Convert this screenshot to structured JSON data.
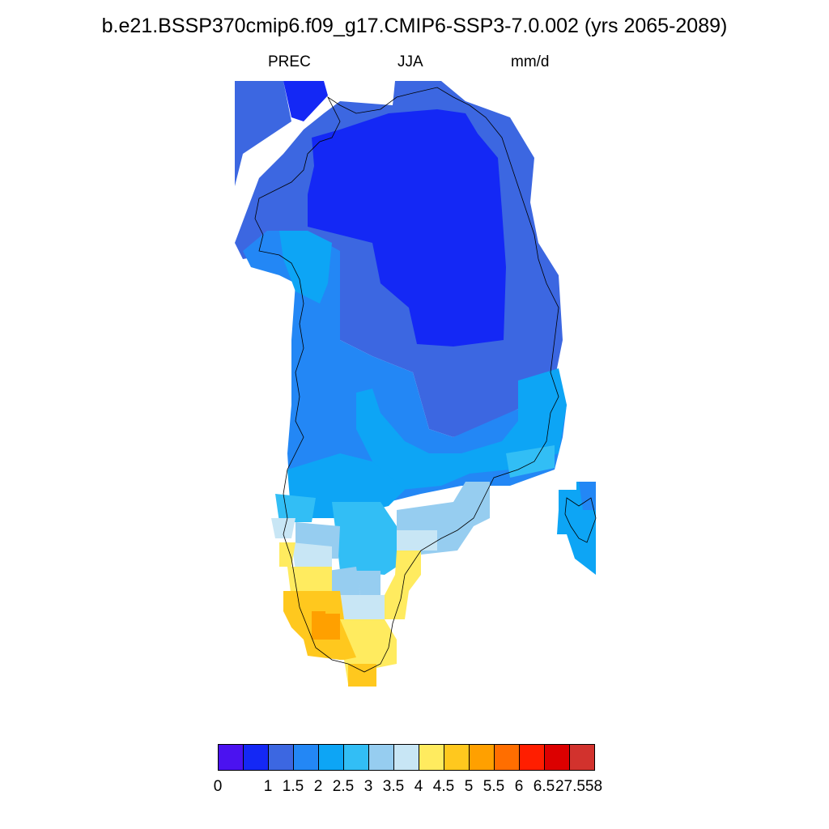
{
  "title": "b.e21.BSSP370cmip6.f09_g17.CMIP6-SSP3-7.0.002 (yrs 2065-2089)",
  "subtitle": {
    "variable": "PREC",
    "season": "JJA",
    "units": "mm/d"
  },
  "colorbar": {
    "colors": [
      "#4B12F0",
      "#1428F5",
      "#3C67E1",
      "#2387F5",
      "#0DA5F5",
      "#32BEF5",
      "#96CDF0",
      "#C8E6F5",
      "#FFEB5F",
      "#FFC81E",
      "#FFA000",
      "#FF6E00",
      "#FF1E00",
      "#DC0000",
      "#D2322D"
    ],
    "labels": [
      "0",
      "",
      "1",
      "1.5",
      "2",
      "2.5",
      "3",
      "3.5",
      "4",
      "4.5",
      "5",
      "5.5",
      "6",
      "6.5",
      "27.558"
    ]
  },
  "map": {
    "region": "Greenland",
    "field": "precipitation"
  }
}
